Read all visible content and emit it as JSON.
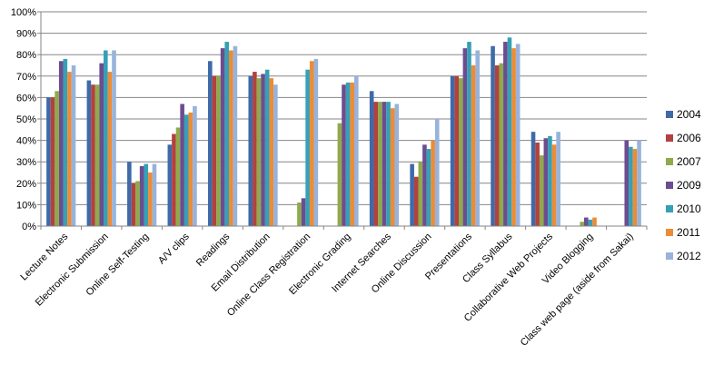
{
  "chart_data": {
    "type": "bar",
    "title": "",
    "xlabel": "",
    "ylabel": "",
    "ylim": [
      0,
      100
    ],
    "y_ticks": [
      "0%",
      "10%",
      "20%",
      "30%",
      "40%",
      "50%",
      "60%",
      "70%",
      "80%",
      "90%",
      "100%"
    ],
    "grid": true,
    "legend_position": "right",
    "categories": [
      "Lecture Notes",
      "Electronic Submission",
      "Online Self-Testing",
      "A/V clips",
      "Readings",
      "Email Distribution",
      "Online Class Registration",
      "Electronic Grading",
      "Internet Searches",
      "Online Discussion",
      "Presentations",
      "Class Syllabus",
      "Collaborative Web Projects",
      "Video Blogging",
      "Class web page (aside from Sakai)"
    ],
    "series": [
      {
        "name": "2004",
        "color": "#3e6aa9",
        "values": [
          60,
          68,
          30,
          38,
          77,
          70,
          null,
          null,
          63,
          29,
          70,
          84,
          44,
          null,
          null
        ]
      },
      {
        "name": "2006",
        "color": "#b3413e",
        "values": [
          60,
          66,
          20,
          43,
          70,
          72,
          null,
          null,
          58,
          23,
          70,
          75,
          39,
          null,
          null
        ]
      },
      {
        "name": "2007",
        "color": "#8faa4a",
        "values": [
          63,
          66,
          21,
          46,
          70,
          69,
          11,
          48,
          58,
          30,
          69,
          76,
          33,
          2,
          null
        ]
      },
      {
        "name": "2009",
        "color": "#6c4d8f",
        "values": [
          77,
          76,
          28,
          57,
          83,
          71,
          13,
          66,
          58,
          38,
          83,
          86,
          41,
          4,
          40
        ]
      },
      {
        "name": "2010",
        "color": "#35a0b7",
        "values": [
          78,
          82,
          29,
          52,
          86,
          73,
          73,
          67,
          58,
          36,
          86,
          88,
          42,
          3,
          37
        ]
      },
      {
        "name": "2011",
        "color": "#ec8c35",
        "values": [
          72,
          72,
          25,
          53,
          82,
          69,
          77,
          67,
          55,
          40,
          75,
          83,
          38,
          4,
          36
        ]
      },
      {
        "name": "2012",
        "color": "#98b3db",
        "values": [
          75,
          82,
          29,
          56,
          84,
          66,
          78,
          70,
          57,
          50,
          82,
          85,
          44,
          null,
          40
        ]
      }
    ]
  }
}
